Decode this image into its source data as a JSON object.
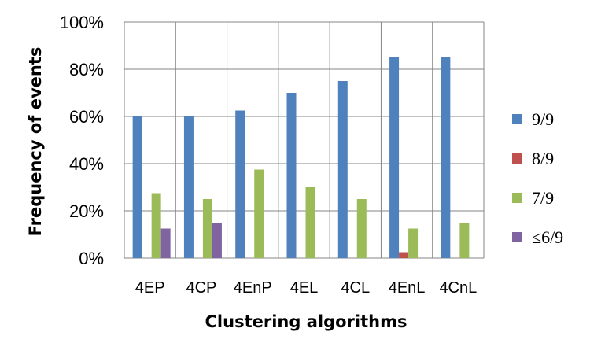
{
  "chart_data": {
    "type": "bar",
    "xlabel": "Clustering algorithms",
    "ylabel": "Frequency of events",
    "ylim": [
      0,
      100
    ],
    "yticks": [
      "0%",
      "20%",
      "40%",
      "60%",
      "80%",
      "100%"
    ],
    "ytick_values": [
      0,
      20,
      40,
      60,
      80,
      100
    ],
    "grid": true,
    "legend_position": "right",
    "categories": [
      "4EP",
      "4CP",
      "4EnP",
      "4EL",
      "4CL",
      "4EnL",
      "4CnL"
    ],
    "series": [
      {
        "name": "9/9",
        "color": "#4f81bd",
        "values": [
          60,
          60,
          62.5,
          70,
          75,
          85,
          85
        ]
      },
      {
        "name": "8/9",
        "color": "#c0504d",
        "values": [
          0,
          0,
          0,
          0,
          0,
          2.5,
          0
        ]
      },
      {
        "name": "7/9",
        "color": "#9bbb59",
        "values": [
          27.5,
          25,
          37.5,
          30,
          25,
          12.5,
          15
        ]
      },
      {
        "name": "≤6/9",
        "color": "#8064a2",
        "values": [
          12.5,
          15,
          0,
          0,
          0,
          0,
          0
        ]
      }
    ]
  }
}
